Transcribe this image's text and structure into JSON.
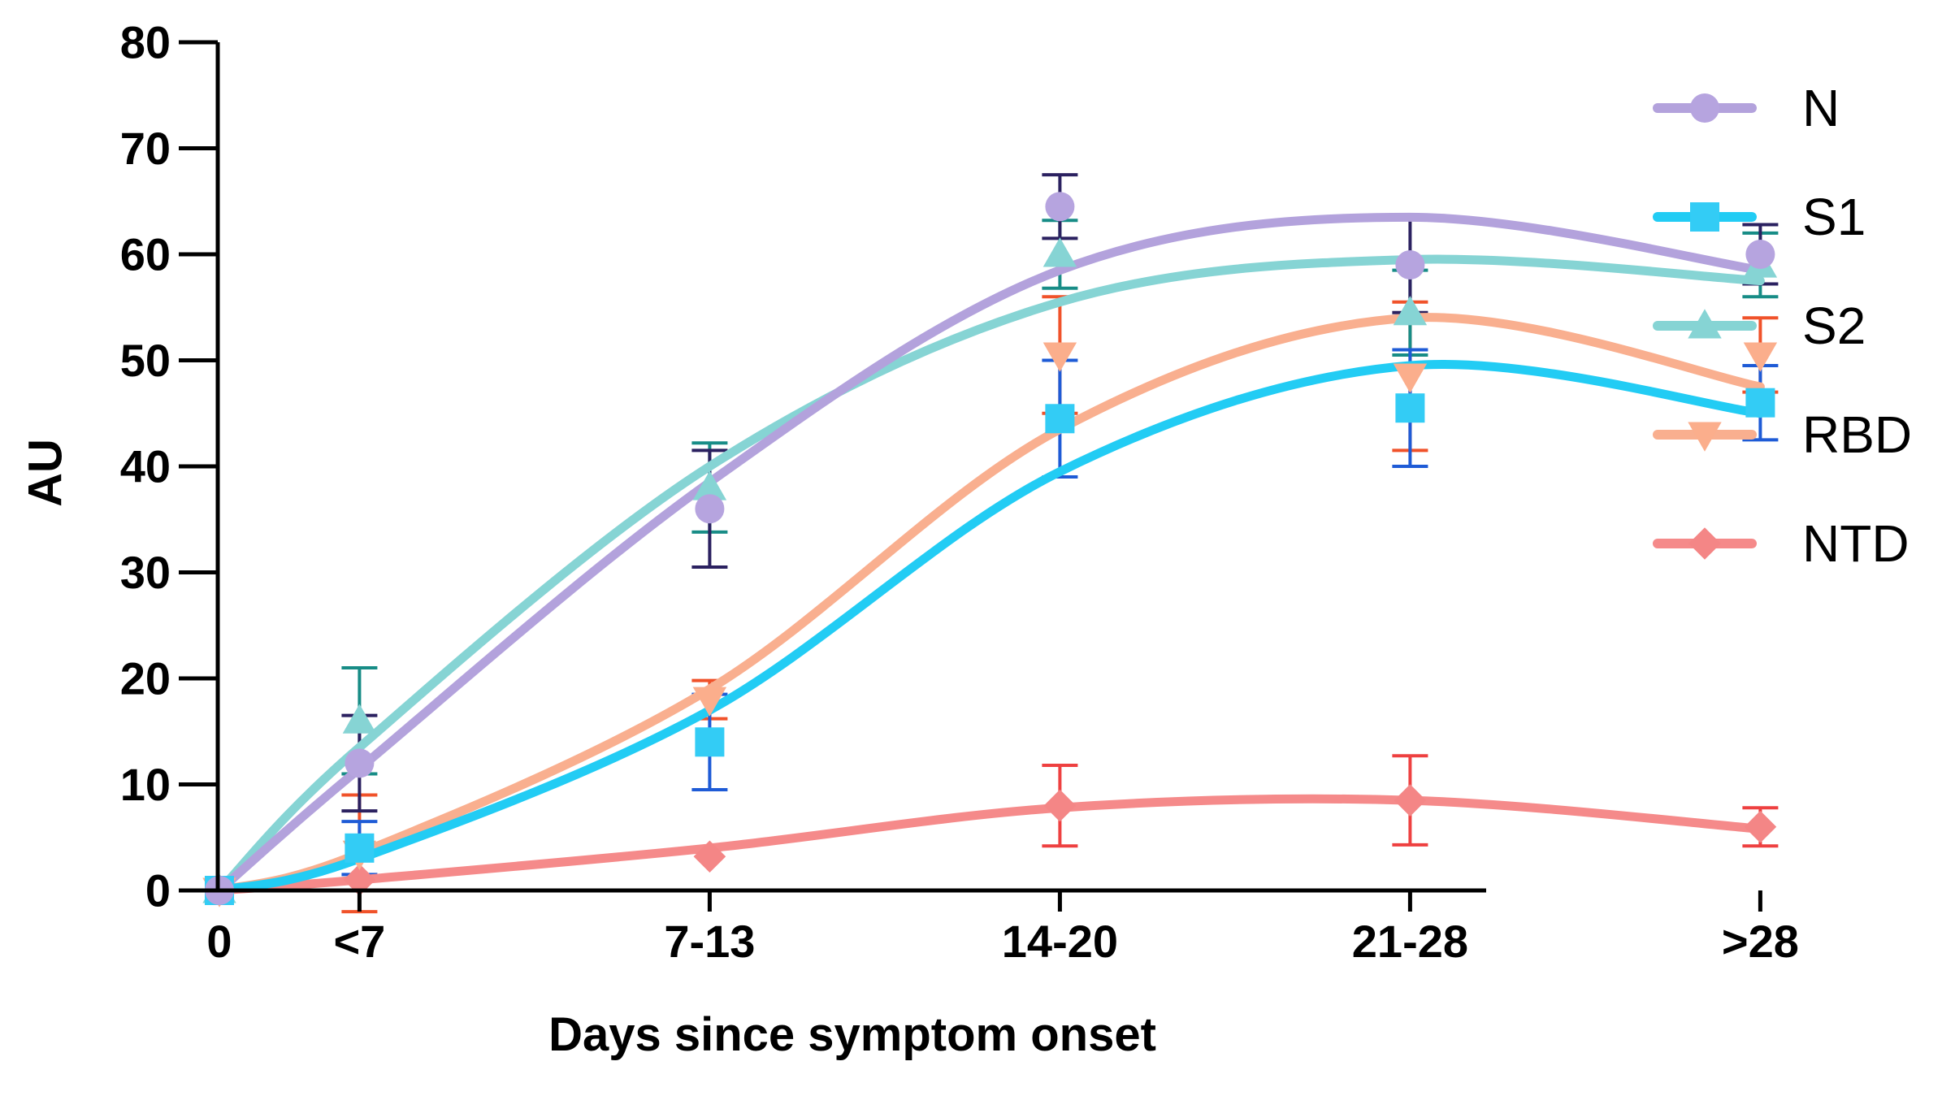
{
  "chart_data": {
    "type": "line",
    "title": "",
    "xlabel": "Days since symptom onset",
    "ylabel": "AU",
    "categories": [
      "0",
      "<7",
      "7-13",
      "14-20",
      "21-28",
      ">28"
    ],
    "x_positions": [
      0,
      1,
      3.5,
      6,
      8.5,
      11
    ],
    "ylim": [
      0,
      80
    ],
    "yticks": [
      0,
      10,
      20,
      30,
      40,
      50,
      60,
      70,
      80
    ],
    "grid": false,
    "legend_position": "right",
    "series": [
      {
        "name": "N",
        "marker": "circle",
        "line_color": "#B3A2DC",
        "marker_color": "#B6A4DF",
        "error_color": "#2B2160",
        "values": [
          0,
          12,
          36,
          64.5,
          59,
          60
        ],
        "errors": [
          0,
          4.5,
          5.5,
          3,
          4.5,
          2.8
        ],
        "fit": [
          0,
          11.5,
          38.5,
          58.5,
          63.5,
          58.5
        ]
      },
      {
        "name": "S1",
        "marker": "square",
        "line_color": "#22CCF4",
        "marker_color": "#33CCF5",
        "error_color": "#1E5BD6",
        "values": [
          0,
          4,
          14,
          44.5,
          45.5,
          46
        ],
        "errors": [
          0,
          2.5,
          4.5,
          5.5,
          5.5,
          3.5
        ],
        "fit": [
          0,
          3,
          17,
          39.5,
          49.5,
          45
        ]
      },
      {
        "name": "S2",
        "marker": "triangle-up",
        "line_color": "#86D4D4",
        "marker_color": "#86D4D4",
        "error_color": "#178C86",
        "values": [
          0,
          16,
          38,
          60,
          54.5,
          59
        ],
        "errors": [
          0,
          5,
          4.2,
          3.2,
          4,
          3
        ],
        "fit": [
          0,
          13.5,
          40,
          55.5,
          59.5,
          57.5
        ]
      },
      {
        "name": "RBD",
        "marker": "triangle-down",
        "line_color": "#F9AF8F",
        "marker_color": "#FBAE8C",
        "error_color": "#F0522A",
        "values": [
          0,
          3.5,
          18,
          50.5,
          48.5,
          50.5
        ],
        "errors": [
          0,
          5.5,
          1.8,
          5.5,
          7,
          3.5
        ],
        "fit": [
          0,
          3.5,
          19,
          43.5,
          54,
          47.5
        ]
      },
      {
        "name": "NTD",
        "marker": "diamond",
        "line_color": "#F58A8A",
        "marker_color": "#F48686",
        "error_color": "#EE4040",
        "values": [
          0,
          1,
          3.2,
          8,
          8.5,
          6
        ],
        "errors": [
          0,
          0,
          0,
          3.8,
          4.2,
          1.8
        ],
        "fit": [
          0,
          1,
          4,
          7.8,
          8.5,
          5.8
        ]
      }
    ]
  }
}
